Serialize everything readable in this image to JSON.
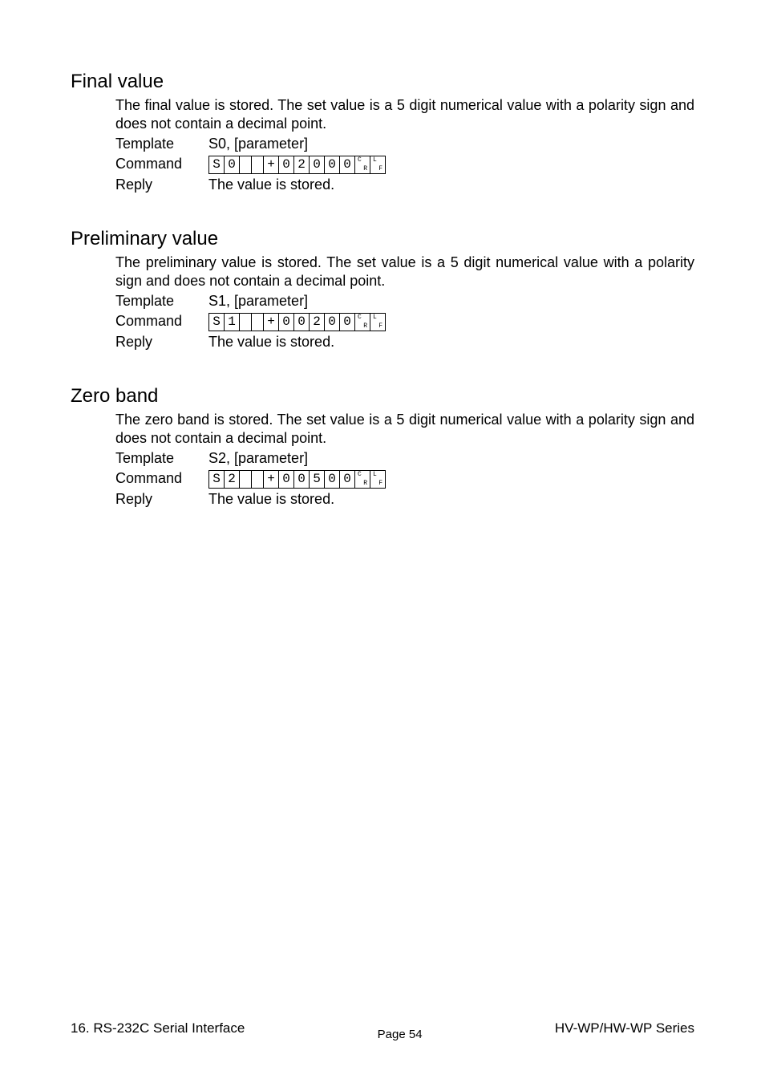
{
  "sections": [
    {
      "heading": "Final value",
      "description": "The final value is stored. The set value is a 5 digit numerical value with a polarity sign and does not contain a decimal point.",
      "template_label": "Template",
      "template_value": "S0, [parameter]",
      "command_label": "Command",
      "command_cells": [
        "S",
        "0",
        "",
        "",
        "+",
        "0",
        "2",
        "0",
        "0",
        "0",
        "CR",
        "LF"
      ],
      "reply_label": "Reply",
      "reply_value": "The value is stored."
    },
    {
      "heading": "Preliminary value",
      "description": "The preliminary value is stored. The set value is a 5 digit numerical value with a polarity sign and does not contain a decimal point.",
      "template_label": "Template",
      "template_value": "S1, [parameter]",
      "command_label": "Command",
      "command_cells": [
        "S",
        "1",
        "",
        "",
        "+",
        "0",
        "0",
        "2",
        "0",
        "0",
        "CR",
        "LF"
      ],
      "reply_label": "Reply",
      "reply_value": "The value is stored."
    },
    {
      "heading": "Zero band",
      "description": "The zero band is stored. The set value is a 5 digit numerical value with a polarity sign and does not contain a decimal point.",
      "template_label": "Template",
      "template_value": "S2, [parameter]",
      "command_label": "Command",
      "command_cells": [
        "S",
        "2",
        "",
        "",
        "+",
        "0",
        "0",
        "5",
        "0",
        "0",
        "CR",
        "LF"
      ],
      "reply_label": "Reply",
      "reply_value": "The value is stored."
    }
  ],
  "footer": {
    "left": "16. RS-232C Serial Interface",
    "center": "Page 54",
    "right": "HV-WP/HW-WP Series"
  }
}
